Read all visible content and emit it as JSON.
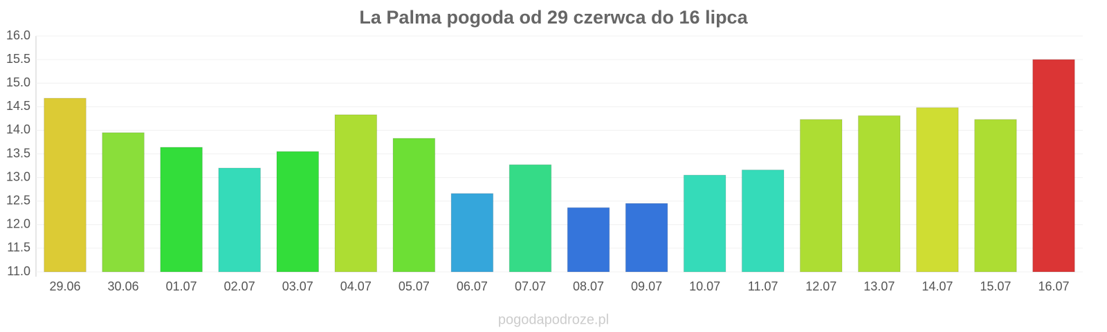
{
  "chart_data": {
    "type": "bar",
    "title": "La Palma pogoda od 29 czerwca do 16 lipca",
    "categories": [
      "29.06",
      "30.06",
      "01.07",
      "02.07",
      "03.07",
      "04.07",
      "05.07",
      "06.07",
      "07.07",
      "08.07",
      "09.07",
      "10.07",
      "11.07",
      "12.07",
      "13.07",
      "14.07",
      "15.07",
      "16.07"
    ],
    "values": [
      14.68,
      13.95,
      13.64,
      13.2,
      13.55,
      14.33,
      13.83,
      12.66,
      13.27,
      12.36,
      12.45,
      13.05,
      13.16,
      14.23,
      14.31,
      14.48,
      14.23,
      15.5
    ],
    "colors": [
      "#dccb35",
      "#8ade3a",
      "#33dd3a",
      "#35dbb9",
      "#33dd3a",
      "#addd33",
      "#6ddf35",
      "#35a6db",
      "#35db87",
      "#3575db",
      "#3575db",
      "#35dbb9",
      "#35dbb9",
      "#addd33",
      "#addd33",
      "#cfdd33",
      "#addd33",
      "#db3535"
    ],
    "ylim": [
      11,
      16
    ],
    "yticks": [
      {
        "value": 11,
        "label": "11.0"
      },
      11.5,
      {
        "value": 12,
        "label": "12.0"
      },
      12.5,
      {
        "value": 13,
        "label": "13.0"
      },
      13.5,
      {
        "value": 14,
        "label": "14.0"
      },
      14.5,
      {
        "value": 15,
        "label": "15.0"
      },
      15.5,
      {
        "value": 16,
        "label": "16.0"
      }
    ],
    "grid": true,
    "source": "pogodapodroze.pl"
  }
}
